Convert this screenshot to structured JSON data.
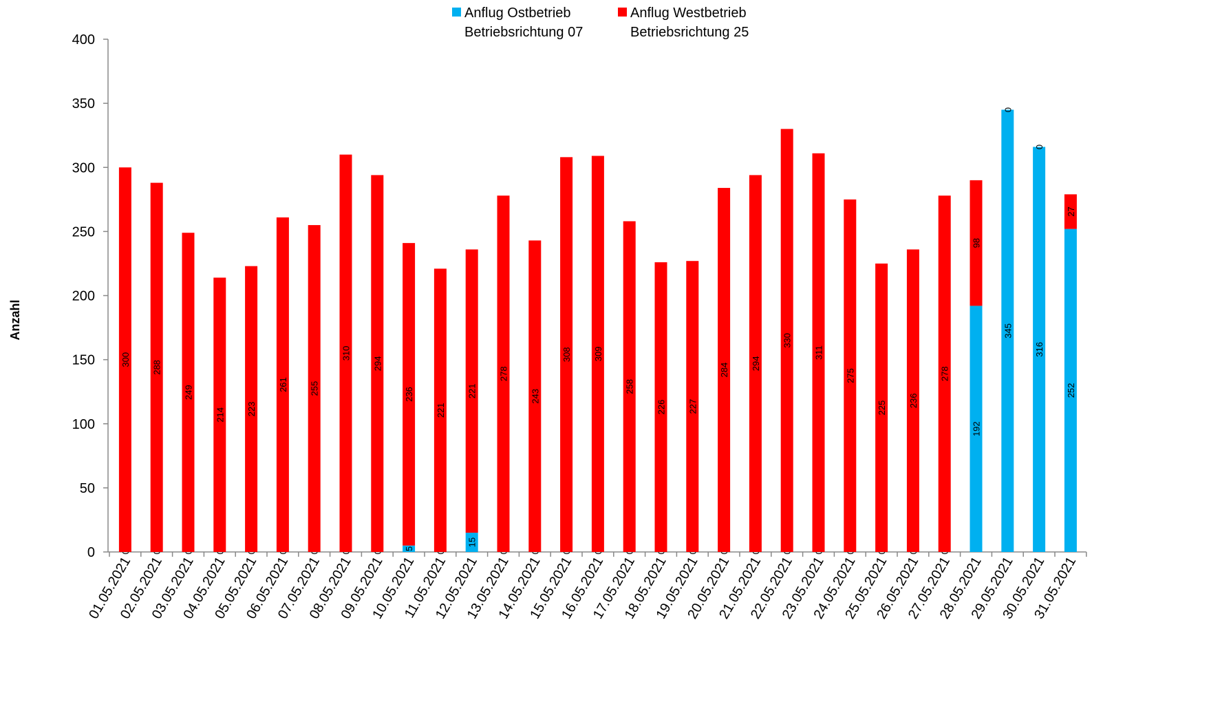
{
  "chart_data": {
    "type": "stacked_bar",
    "y_label": "Anzahl",
    "categories": [
      "01.05.2021",
      "02.05.2021",
      "03.05.2021",
      "04.05.2021",
      "05.05.2021",
      "06.05.2021",
      "07.05.2021",
      "08.05.2021",
      "09.05.2021",
      "10.05.2021",
      "11.05.2021",
      "12.05.2021",
      "13.05.2021",
      "14.05.2021",
      "15.05.2021",
      "16.05.2021",
      "17.05.2021",
      "18.05.2021",
      "19.05.2021",
      "20.05.2021",
      "21.05.2021",
      "22.05.2021",
      "23.05.2021",
      "24.05.2021",
      "25.05.2021",
      "26.05.2021",
      "27.05.2021",
      "28.05.2021",
      "29.05.2021",
      "30.05.2021",
      "31.05.2021"
    ],
    "series": [
      {
        "name": "Anflug Ostbetrieb\nBetriebsrichtung 07",
        "color": "#00b0f0",
        "values": [
          0,
          0,
          0,
          0,
          0,
          0,
          0,
          0,
          0,
          5,
          0,
          15,
          0,
          0,
          0,
          0,
          0,
          0,
          0,
          0,
          0,
          0,
          0,
          0,
          0,
          0,
          0,
          192,
          345,
          316,
          252
        ]
      },
      {
        "name": "Anflug Westbetrieb\nBetriebsrichtung 25",
        "color": "#ff0000",
        "values": [
          300,
          288,
          249,
          214,
          223,
          261,
          255,
          310,
          294,
          236,
          221,
          221,
          278,
          243,
          308,
          309,
          258,
          226,
          227,
          284,
          294,
          330,
          311,
          275,
          225,
          236,
          278,
          98,
          0,
          0,
          27
        ]
      }
    ],
    "ylim": [
      0,
      400
    ],
    "yticks": [
      0,
      50,
      100,
      150,
      200,
      250,
      300,
      350,
      400
    ],
    "grid": false,
    "legend": "top"
  }
}
